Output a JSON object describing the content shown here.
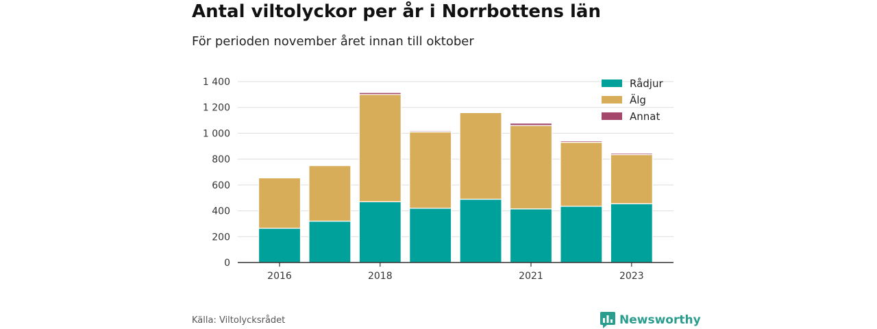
{
  "title": "Antal viltolyckor per år i Norrbottens län",
  "subtitle": "För perioden november året innan till oktober",
  "source": "Källa: Viltolycksrådet",
  "brand": "Newsworthy",
  "colors": {
    "radjur": "#00a19a",
    "alg": "#d8ad5a",
    "annat": "#a5466b",
    "brand": "#2a9d8f",
    "grid": "#dddddd",
    "axis": "#333333"
  },
  "chart_data": {
    "type": "bar",
    "stacked": true,
    "categories": [
      "2016",
      "2017",
      "2018",
      "2019",
      "2020",
      "2021",
      "2022",
      "2023"
    ],
    "x_tick_labels": [
      "2016",
      "",
      "2018",
      "",
      "",
      "2021",
      "",
      "2023"
    ],
    "series": [
      {
        "name": "Rådjur",
        "color": "#00a19a",
        "values": [
          265,
          320,
          470,
          420,
          490,
          415,
          435,
          455
        ]
      },
      {
        "name": "Älg",
        "color": "#d8ad5a",
        "values": [
          390,
          430,
          830,
          590,
          670,
          645,
          495,
          380
        ]
      },
      {
        "name": "Annat",
        "color": "#a5466b",
        "values": [
          3,
          3,
          15,
          8,
          2,
          18,
          10,
          10
        ]
      }
    ],
    "y_ticks": [
      0,
      200,
      400,
      600,
      800,
      1000,
      1200,
      1400
    ],
    "y_tick_labels": [
      "0",
      "200",
      "400",
      "600",
      "800",
      "1 000",
      "1 200",
      "1 400"
    ],
    "ylim": [
      0,
      1400
    ],
    "grid": true,
    "legend": "top-right"
  }
}
